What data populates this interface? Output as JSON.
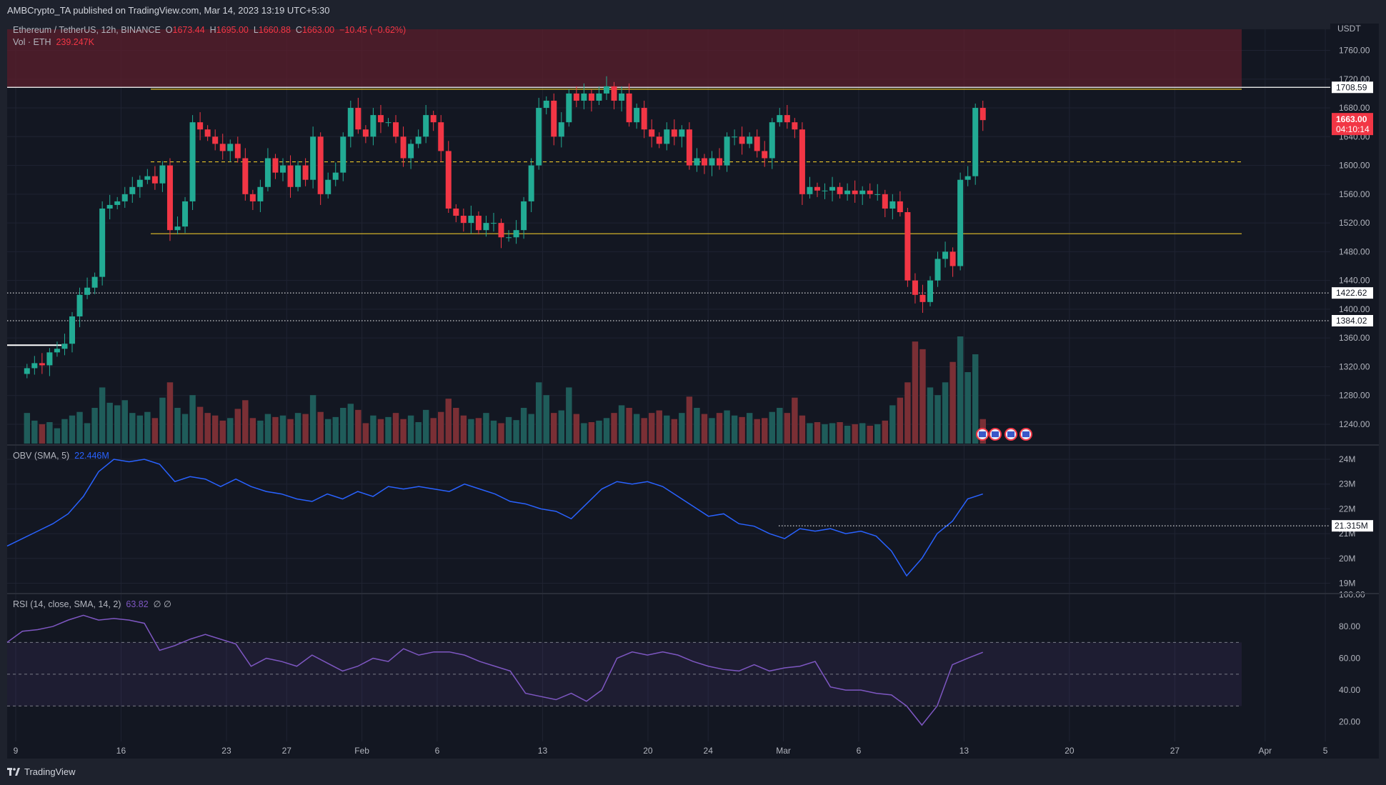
{
  "header": {
    "published": "AMBCrypto_TA published on TradingView.com, Mar 14, 2023 13:19 UTC+5:30"
  },
  "symbol": {
    "title": "Ethereum / TetherUS, 12h, BINANCE",
    "o_label": "O",
    "o": "1673.44",
    "h_label": "H",
    "h": "1695.00",
    "l_label": "L",
    "l": "1660.88",
    "c_label": "C",
    "c": "1663.00",
    "change": "−10.45 (−0.62%)",
    "vol_label": "Vol · ETH",
    "vol": "239.247K"
  },
  "price_axis": {
    "unit": "USDT",
    "ticks": [
      "1760.00",
      "1720.00",
      "1680.00",
      "1640.00",
      "1600.00",
      "1560.00",
      "1520.00",
      "1480.00",
      "1440.00",
      "1400.00",
      "1360.00",
      "1320.00",
      "1280.00",
      "1240.00"
    ],
    "tick_values": [
      1760,
      1720,
      1680,
      1640,
      1600,
      1560,
      1520,
      1480,
      1440,
      1400,
      1360,
      1320,
      1280,
      1240
    ],
    "labels": [
      {
        "text": "1708.59",
        "value": 1708.59
      },
      {
        "text": "1422.62",
        "value": 1422.62
      },
      {
        "text": "1384.02",
        "value": 1384.02
      }
    ],
    "last_price": "1663.00",
    "countdown": "04:10:14"
  },
  "levels": {
    "resistance_zone": [
      1708.59,
      1800
    ],
    "yellow_top": 1708,
    "yellow_mid_dashed": 1605,
    "yellow_bottom": 1505,
    "white_short": 1350
  },
  "obv": {
    "label": "OBV (SMA, 5)",
    "value": "22.446M",
    "ticks": [
      "24M",
      "23M",
      "22M",
      "21M",
      "20M",
      "19M"
    ],
    "tick_values": [
      24,
      23,
      22,
      21,
      20,
      19
    ],
    "level_label": "21.315M",
    "level": 21.315,
    "series": [
      20.5,
      20.8,
      21.1,
      21.4,
      21.8,
      22.5,
      23.5,
      24.0,
      23.9,
      24.0,
      23.8,
      23.1,
      23.3,
      23.2,
      22.9,
      23.2,
      22.9,
      22.7,
      22.6,
      22.4,
      22.3,
      22.6,
      22.4,
      22.7,
      22.5,
      22.9,
      22.8,
      22.9,
      22.8,
      22.7,
      23.0,
      22.8,
      22.6,
      22.3,
      22.2,
      22.0,
      21.9,
      21.6,
      22.2,
      22.8,
      23.1,
      23.0,
      23.1,
      22.9,
      22.5,
      22.1,
      21.7,
      21.8,
      21.4,
      21.3,
      21.0,
      20.8,
      21.2,
      21.1,
      21.2,
      21.0,
      21.1,
      20.9,
      20.3,
      19.3,
      20.0,
      21.0,
      21.5,
      22.4,
      22.6
    ]
  },
  "rsi": {
    "label": "RSI (14, close, SMA, 14, 2)",
    "value": "63.82",
    "extra": "∅  ∅",
    "ticks": [
      "100.00",
      "80.00",
      "60.00",
      "40.00",
      "20.00"
    ],
    "tick_values": [
      100,
      80,
      60,
      40,
      20
    ],
    "bands": [
      70,
      50,
      30
    ],
    "series": [
      70,
      77,
      78,
      80,
      84,
      87,
      84,
      85,
      84,
      82,
      65,
      68,
      72,
      75,
      72,
      69,
      55,
      60,
      58,
      55,
      62,
      57,
      52,
      55,
      60,
      58,
      66,
      62,
      64,
      64,
      62,
      58,
      55,
      52,
      38,
      36,
      34,
      38,
      33,
      40,
      60,
      64,
      62,
      64,
      62,
      58,
      55,
      53,
      52,
      56,
      52,
      54,
      55,
      58,
      42,
      40,
      40,
      38,
      37,
      30,
      18,
      30,
      56,
      60,
      63.8
    ]
  },
  "time_axis": {
    "labels": [
      "9",
      "16",
      "23",
      "27",
      "Feb",
      "6",
      "13",
      "20",
      "24",
      "Mar",
      "6",
      "13",
      "20",
      "27",
      "Apr",
      "5"
    ],
    "day_offsets": [
      0,
      7,
      14,
      18,
      23,
      28,
      35,
      42,
      46,
      51,
      56,
      63,
      70,
      77,
      83,
      87
    ]
  },
  "chart_data": {
    "type": "candlestick",
    "interval": "12h",
    "closes": [
      1318,
      1325,
      1322,
      1340,
      1345,
      1352,
      1390,
      1420,
      1430,
      1445,
      1540,
      1545,
      1550,
      1560,
      1570,
      1580,
      1585,
      1575,
      1600,
      1510,
      1515,
      1550,
      1660,
      1650,
      1640,
      1630,
      1620,
      1630,
      1610,
      1560,
      1550,
      1570,
      1610,
      1590,
      1600,
      1570,
      1600,
      1580,
      1640,
      1560,
      1580,
      1590,
      1640,
      1680,
      1650,
      1640,
      1670,
      1660,
      1660,
      1640,
      1610,
      1630,
      1640,
      1670,
      1660,
      1620,
      1540,
      1530,
      1520,
      1530,
      1510,
      1520,
      1520,
      1500,
      1500,
      1510,
      1550,
      1600,
      1680,
      1690,
      1640,
      1660,
      1700,
      1690,
      1700,
      1690,
      1700,
      1710,
      1690,
      1700,
      1660,
      1680,
      1650,
      1640,
      1630,
      1650,
      1640,
      1650,
      1600,
      1610,
      1600,
      1610,
      1600,
      1640,
      1640,
      1630,
      1640,
      1620,
      1610,
      1660,
      1670,
      1660,
      1650,
      1560,
      1570,
      1565,
      1565,
      1570,
      1560,
      1565,
      1560,
      1565,
      1560,
      1560,
      1540,
      1550,
      1535,
      1440,
      1420,
      1410,
      1440,
      1470,
      1480,
      1460,
      1580,
      1585,
      1680,
      1663
    ],
    "volumes": [
      60,
      45,
      38,
      42,
      30,
      48,
      55,
      62,
      40,
      70,
      110,
      80,
      75,
      85,
      60,
      55,
      62,
      50,
      90,
      120,
      70,
      58,
      95,
      72,
      60,
      55,
      45,
      50,
      68,
      85,
      50,
      45,
      58,
      52,
      55,
      48,
      60,
      58,
      95,
      62,
      48,
      52,
      70,
      78,
      66,
      40,
      55,
      48,
      52,
      60,
      48,
      55,
      42,
      66,
      50,
      62,
      88,
      70,
      55,
      48,
      50,
      60,
      45,
      40,
      52,
      46,
      70,
      58,
      120,
      95,
      60,
      65,
      110,
      58,
      40,
      42,
      45,
      50,
      60,
      75,
      70,
      58,
      50,
      60,
      65,
      55,
      48,
      60,
      92,
      70,
      58,
      50,
      60,
      65,
      55,
      52,
      60,
      48,
      50,
      62,
      70,
      60,
      90,
      55,
      40,
      42,
      38,
      40,
      42,
      35,
      38,
      40,
      35,
      38,
      45,
      75,
      90,
      120,
      200,
      185,
      110,
      95,
      120,
      160,
      210,
      140,
      175,
      48
    ]
  }
}
